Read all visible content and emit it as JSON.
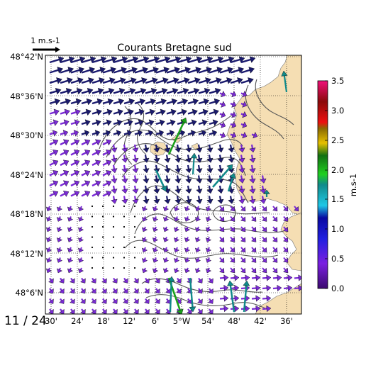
{
  "title": "Courants Bretagne sud",
  "scale_label": "1 m.s-1",
  "frame_label": "11 / 24",
  "lat_labels": [
    "48°42'N",
    "48°36'N",
    "48°30'N",
    "48°24'N",
    "48°18'N",
    "48°12'N",
    "48°6'N"
  ],
  "lon_labels": [
    "30'",
    "24'",
    "18'",
    "12'",
    "6'",
    "5°W",
    "54'",
    "48'",
    "42'",
    "36'"
  ],
  "colorbar": {
    "unit": "m.s-1",
    "min": 0.0,
    "max": 3.5,
    "ticks": [
      "0.0",
      "0.5",
      "1.0",
      "1.5",
      "2.0",
      "2.5",
      "3.0",
      "3.5"
    ],
    "stops": [
      "#3b0a6e",
      "#7a1fe0",
      "#1010c0",
      "#1fc8e6",
      "#1aa01a",
      "#e6c000",
      "#cc1010",
      "#e0107a"
    ]
  },
  "colors": {
    "land": "#f5deb3",
    "contour": "#555555",
    "slow": "#7a2ad6",
    "fast": "#1a1a6e"
  }
}
